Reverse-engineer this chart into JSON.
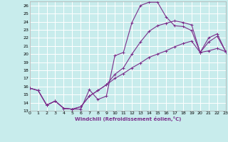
{
  "xlabel": "Windchill (Refroidissement éolien,°C)",
  "bg_color": "#c8ecec",
  "grid_color": "#ffffff",
  "line_color": "#7b2d8b",
  "xlim": [
    0,
    23
  ],
  "ylim": [
    13,
    26.5
  ],
  "xticks": [
    0,
    1,
    2,
    3,
    4,
    5,
    6,
    7,
    8,
    9,
    10,
    11,
    12,
    13,
    14,
    15,
    16,
    17,
    18,
    19,
    20,
    21,
    22,
    23
  ],
  "yticks": [
    13,
    14,
    15,
    16,
    17,
    18,
    19,
    20,
    21,
    22,
    23,
    24,
    25,
    26
  ],
  "line1_x": [
    0,
    1,
    2,
    3,
    4,
    5,
    6,
    7,
    8,
    9,
    10,
    11,
    12,
    13,
    14,
    15,
    16,
    17,
    18,
    19,
    20,
    21,
    22,
    23
  ],
  "line1_y": [
    15.8,
    15.5,
    13.7,
    14.2,
    13.3,
    13.2,
    13.2,
    15.6,
    14.4,
    14.8,
    19.8,
    20.2,
    23.9,
    26.0,
    26.4,
    26.4,
    24.6,
    23.5,
    23.4,
    22.9,
    20.2,
    22.0,
    22.5,
    20.3
  ],
  "line2_x": [
    0,
    1,
    2,
    3,
    4,
    5,
    6,
    7,
    8,
    9,
    10,
    11,
    12,
    13,
    14,
    15,
    16,
    17,
    18,
    19,
    20,
    21,
    22,
    23
  ],
  "line2_y": [
    15.8,
    15.5,
    13.7,
    14.2,
    13.3,
    13.2,
    13.5,
    14.8,
    15.5,
    16.2,
    17.0,
    17.6,
    18.3,
    18.9,
    19.6,
    20.0,
    20.4,
    20.9,
    21.3,
    21.6,
    20.2,
    20.4,
    20.7,
    20.3
  ],
  "line3_x": [
    0,
    1,
    2,
    3,
    4,
    5,
    6,
    7,
    8,
    9,
    10,
    11,
    12,
    13,
    14,
    15,
    16,
    17,
    18,
    19,
    20,
    21,
    22,
    23
  ],
  "line3_y": [
    15.8,
    15.5,
    13.7,
    14.2,
    13.3,
    13.2,
    13.5,
    14.8,
    15.5,
    16.2,
    17.5,
    18.3,
    20.0,
    21.5,
    22.8,
    23.5,
    23.8,
    24.1,
    23.9,
    23.6,
    20.2,
    21.5,
    22.2,
    20.3
  ]
}
